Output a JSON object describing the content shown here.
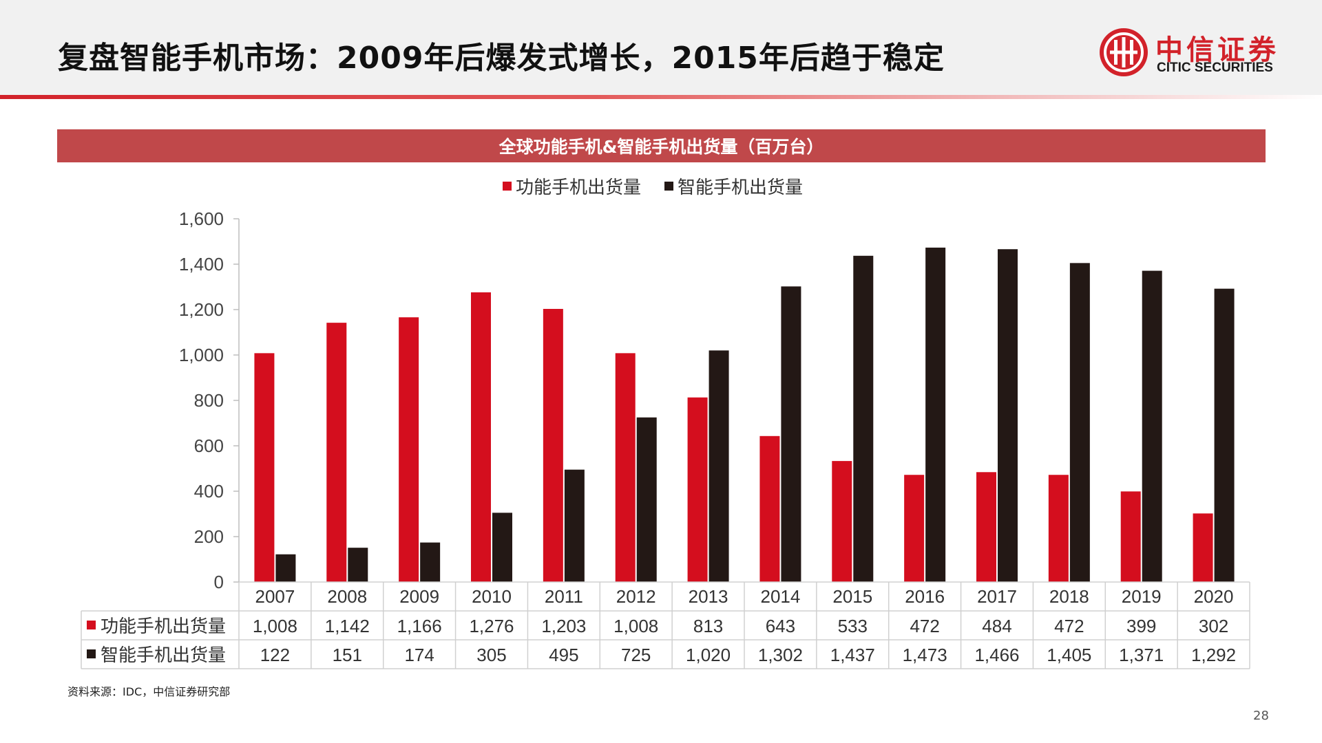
{
  "header": {
    "title": "复盘智能手机市场：2009年后爆发式增长，2015年后趋于稳定",
    "logo_cn": "中信证券",
    "logo_en": "CITIC SECURITIES",
    "brand_color": "#d2222a"
  },
  "source": "资料来源：IDC，中信证券研究部",
  "page_number": "28",
  "chart_data": {
    "type": "bar",
    "title": "全球功能手机&智能手机出货量（百万台）",
    "categories": [
      "2007",
      "2008",
      "2009",
      "2010",
      "2011",
      "2012",
      "2013",
      "2014",
      "2015",
      "2016",
      "2017",
      "2018",
      "2019",
      "2020"
    ],
    "series": [
      {
        "name": "功能手机出货量",
        "color": "#d40e1e",
        "values": [
          1008,
          1142,
          1166,
          1276,
          1203,
          1008,
          813,
          643,
          533,
          472,
          484,
          472,
          399,
          302
        ],
        "labels": [
          "1,008",
          "1,142",
          "1,166",
          "1,276",
          "1,203",
          "1,008",
          "813",
          "643",
          "533",
          "472",
          "484",
          "472",
          "399",
          "302"
        ]
      },
      {
        "name": "智能手机出货量",
        "color": "#231815",
        "values": [
          122,
          151,
          174,
          305,
          495,
          725,
          1020,
          1302,
          1437,
          1473,
          1466,
          1405,
          1371,
          1292
        ],
        "labels": [
          "122",
          "151",
          "174",
          "305",
          "495",
          "725",
          "1,020",
          "1,302",
          "1,437",
          "1,473",
          "1,466",
          "1,405",
          "1,371",
          "1,292"
        ]
      }
    ],
    "ylim": [
      0,
      1600
    ],
    "yticks": [
      "0",
      "200",
      "400",
      "600",
      "800",
      "1,000",
      "1,200",
      "1,400",
      "1,600"
    ],
    "ytick_values": [
      0,
      200,
      400,
      600,
      800,
      1000,
      1200,
      1400,
      1600
    ],
    "legend_position": "top-center",
    "data_table": true,
    "grid": false
  }
}
